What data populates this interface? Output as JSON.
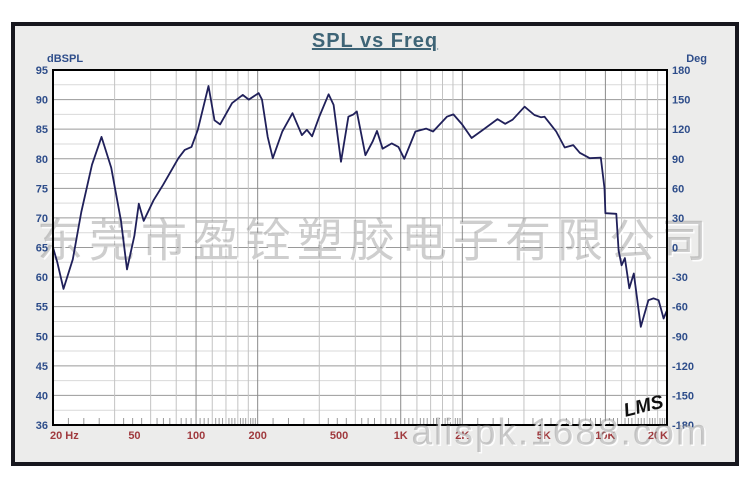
{
  "title": "SPL vs Freq",
  "watermarks": {
    "center": "东莞市盈铨塑胶电子有限公司",
    "bottom": "alispk.1688.com"
  },
  "logo_text": "LMS",
  "colors": {
    "curve": "#20205a",
    "axis_text_blue": "#2e4d8a",
    "axis_text_red": "#a03a3e",
    "grid_major": "#9a9a9a",
    "grid_minor": "#d9d9d9",
    "plot_border": "#000000",
    "panel_bg": "#ececeb",
    "title_color": "#3e6476"
  },
  "chart_data": {
    "type": "line",
    "title": "SPL vs Freq",
    "x_scale": "log",
    "x_unit": "Hz",
    "x_range": [
      20,
      20000
    ],
    "x_tick_labels": [
      "20 Hz",
      "50",
      "100",
      "200",
      "500",
      "1K",
      "2K",
      "5K",
      "10K",
      "20K"
    ],
    "x_tick_values": [
      20,
      50,
      100,
      200,
      500,
      1000,
      2000,
      5000,
      10000,
      20000
    ],
    "y_left": {
      "label": "dBSPL",
      "range": [
        35,
        95
      ],
      "major_step": 5,
      "minor_step": 2.5,
      "tick_labels": [
        "95",
        "90",
        "85",
        "80",
        "75",
        "70",
        "65",
        "60",
        "55",
        "50",
        "45",
        "40",
        "36"
      ]
    },
    "y_right": {
      "label": "Deg",
      "range": [
        -180,
        180
      ],
      "major_step": 30,
      "tick_labels": [
        "180",
        "150",
        "120",
        "90",
        "60",
        "30",
        "0",
        "-30",
        "-60",
        "-90",
        "-120",
        "-150",
        "-180"
      ]
    },
    "grid": true,
    "legend": "none",
    "series": [
      {
        "name": "SPL",
        "points": [
          [
            20,
            65
          ],
          [
            21,
            62.5
          ],
          [
            22.5,
            58
          ],
          [
            25,
            63
          ],
          [
            27.5,
            71
          ],
          [
            31,
            79
          ],
          [
            34.5,
            83.7
          ],
          [
            38.5,
            78.5
          ],
          [
            43,
            69.5
          ],
          [
            46,
            61.3
          ],
          [
            50,
            67
          ],
          [
            52.5,
            72.4
          ],
          [
            55.5,
            69.5
          ],
          [
            62,
            73
          ],
          [
            69,
            75.6
          ],
          [
            82,
            80.1
          ],
          [
            88,
            81.5
          ],
          [
            95,
            82
          ],
          [
            102,
            84.9
          ],
          [
            115,
            92.3
          ],
          [
            123,
            86.5
          ],
          [
            131,
            85.8
          ],
          [
            150,
            89.4
          ],
          [
            169,
            90.8
          ],
          [
            181,
            90
          ],
          [
            202,
            91.1
          ],
          [
            210,
            90
          ],
          [
            224,
            83.7
          ],
          [
            237,
            80.1
          ],
          [
            264,
            84.6
          ],
          [
            296,
            87.7
          ],
          [
            329,
            84
          ],
          [
            348,
            84.9
          ],
          [
            369,
            83.8
          ],
          [
            401,
            87.2
          ],
          [
            444,
            90.9
          ],
          [
            470,
            89.1
          ],
          [
            511,
            79.5
          ],
          [
            555,
            87.1
          ],
          [
            587,
            87.5
          ],
          [
            610,
            88
          ],
          [
            672,
            80.6
          ],
          [
            729,
            82.9
          ],
          [
            766,
            84.7
          ],
          [
            816,
            81.7
          ],
          [
            905,
            82.6
          ],
          [
            974,
            82
          ],
          [
            1041,
            80
          ],
          [
            1179,
            84.6
          ],
          [
            1330,
            85.1
          ],
          [
            1440,
            84.6
          ],
          [
            1682,
            87.1
          ],
          [
            1808,
            87.5
          ],
          [
            1995,
            85.8
          ],
          [
            2220,
            83.5
          ],
          [
            2500,
            84.8
          ],
          [
            2970,
            86.7
          ],
          [
            3240,
            85.9
          ],
          [
            3520,
            86.6
          ],
          [
            4030,
            88.8
          ],
          [
            4500,
            87.4
          ],
          [
            4850,
            87
          ],
          [
            5040,
            87.1
          ],
          [
            5750,
            84.6
          ],
          [
            6330,
            81.9
          ],
          [
            6960,
            82.3
          ],
          [
            7500,
            81
          ],
          [
            8380,
            80.1
          ],
          [
            9500,
            80.2
          ],
          [
            9900,
            75
          ],
          [
            10000,
            70.8
          ],
          [
            11300,
            70.7
          ],
          [
            11600,
            64.5
          ],
          [
            12000,
            62
          ],
          [
            12460,
            63.2
          ],
          [
            13090,
            58.1
          ],
          [
            13760,
            60.6
          ],
          [
            14890,
            51.6
          ],
          [
            16230,
            56.1
          ],
          [
            17180,
            56.4
          ],
          [
            18200,
            56.1
          ],
          [
            19250,
            53
          ],
          [
            20000,
            54.4
          ]
        ]
      }
    ]
  }
}
